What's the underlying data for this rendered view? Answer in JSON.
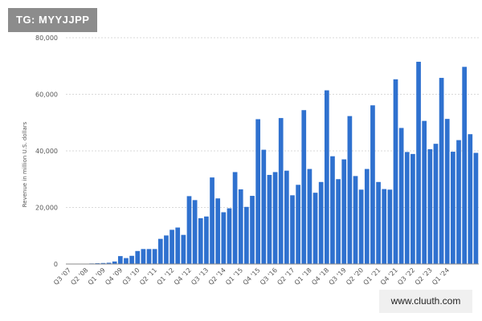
{
  "watermarks": {
    "top_left": "TG: MYYJJPP",
    "bottom_right": "www.cluuth.com"
  },
  "colors": {
    "bar": "#2f71cf",
    "grid": "#d9d9d9",
    "axis": "#888888",
    "watermark_bg": "#8c8c8c"
  },
  "chart_data": {
    "type": "bar",
    "title": "",
    "xlabel": "",
    "ylabel": "Revenue in million U.S. dollars",
    "ylim": [
      0,
      80000
    ],
    "yticks": [
      0,
      20000,
      40000,
      60000,
      80000
    ],
    "ytick_labels": [
      "0",
      "20,000",
      "40,000",
      "60,000",
      "80,000"
    ],
    "grid": true,
    "series": [
      {
        "values": [
          5,
          20,
          60,
          120,
          200,
          280,
          350,
          450,
          900,
          2800,
          2100,
          2900,
          4600,
          5300,
          5300,
          5300,
          8900,
          10100,
          12100,
          12900,
          10300,
          24000,
          22600,
          16200,
          16800,
          30600,
          23200,
          18300,
          19700,
          32500,
          26400,
          20200,
          24100,
          51200,
          40400,
          31500,
          32500,
          51600,
          33000,
          24300,
          28000,
          54400,
          33600,
          25200,
          29000,
          61400,
          38100,
          30000,
          37000,
          52300,
          31100,
          26300,
          33600,
          56100,
          29000,
          26500,
          26300,
          65300,
          48100,
          39600,
          38900,
          71500,
          50600,
          40600,
          42500,
          65800,
          51300,
          39700,
          43800,
          69700,
          45900,
          39300
        ]
      }
    ],
    "x_tick_labels": [
      "Q3 '07",
      "Q2 '08",
      "Q1 '09",
      "Q4 '09",
      "Q3 '10",
      "Q2 '11",
      "Q1 '12",
      "Q4 '12",
      "Q3 '13",
      "Q2 '14",
      "Q1 '15",
      "Q4 '15",
      "Q3 '16",
      "Q2 '17",
      "Q1 '18",
      "Q4 '18",
      "Q3 '19",
      "Q2 '20",
      "Q1 '21",
      "Q4 '21",
      "Q3 '22",
      "Q2 '23",
      "Q1 '24"
    ],
    "x_tick_every": 3
  }
}
